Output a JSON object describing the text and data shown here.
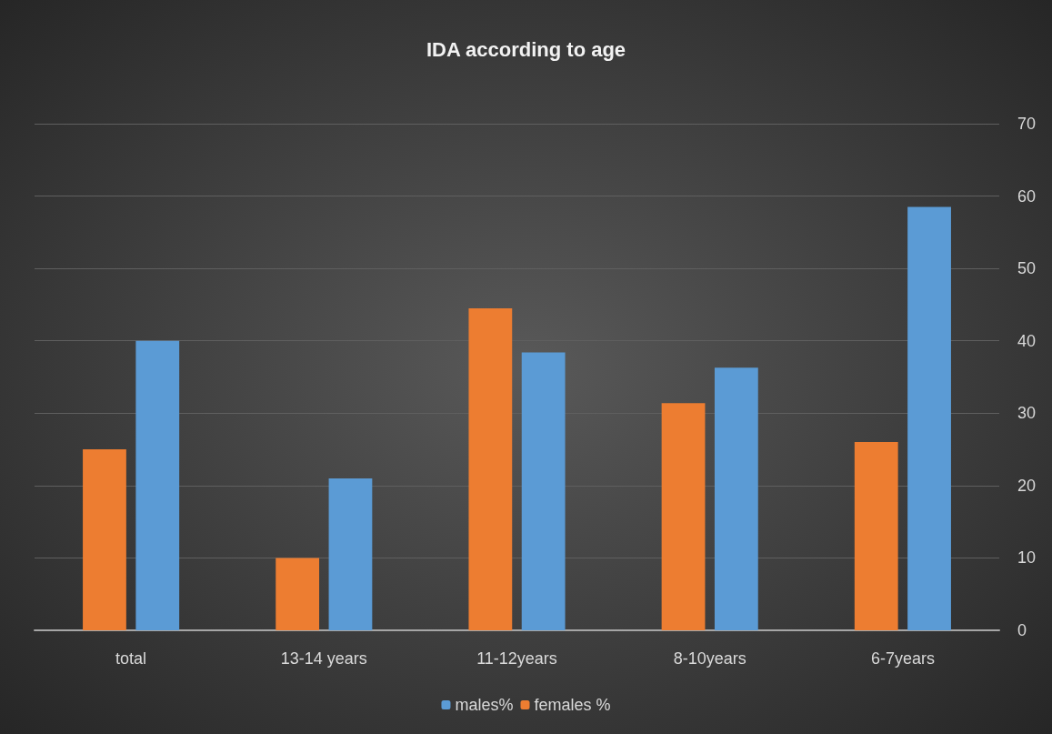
{
  "chart_data": {
    "type": "bar",
    "title": "IDA according to age",
    "categories": [
      "total",
      "13-14 years",
      "11-12years",
      "8-10years",
      "6-7years"
    ],
    "series": [
      {
        "name": "females %",
        "color": "#ed7d31",
        "values": [
          25,
          10,
          44.5,
          31.4,
          26
        ]
      },
      {
        "name": "males%",
        "color": "#5b9bd5",
        "values": [
          40,
          21,
          38.4,
          36.3,
          58.5
        ]
      }
    ],
    "ylim": [
      0,
      70
    ],
    "yticks": [
      0,
      10,
      20,
      30,
      40,
      50,
      60,
      70
    ],
    "grid": "y",
    "legend": "bottom"
  }
}
